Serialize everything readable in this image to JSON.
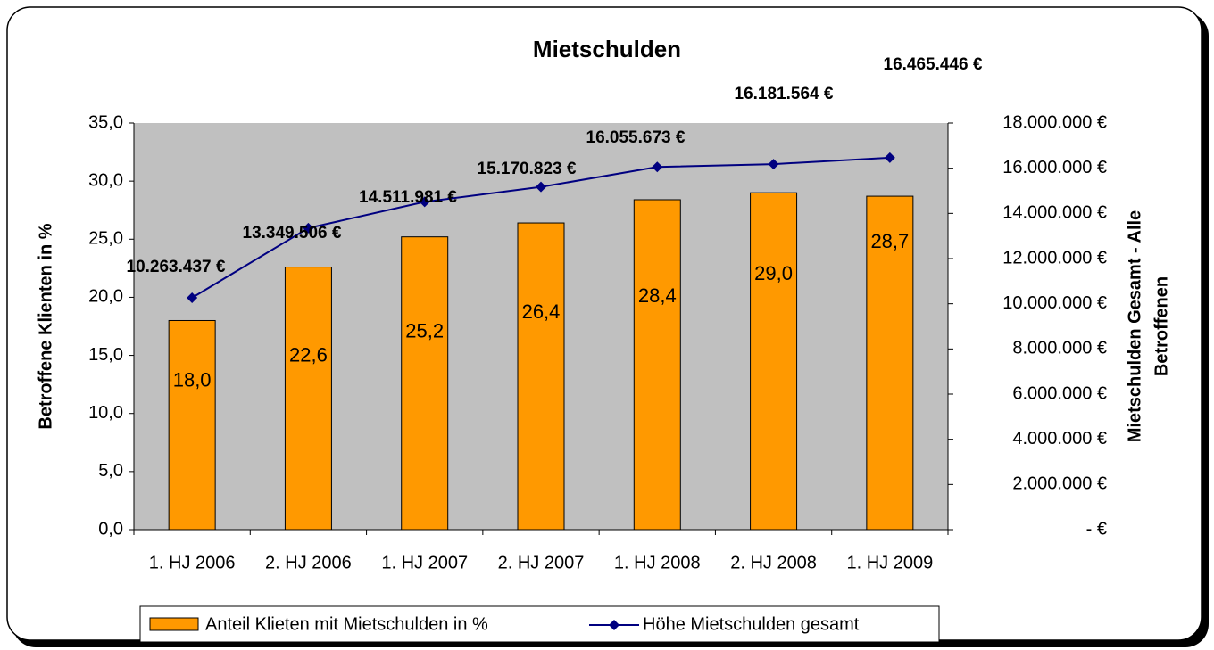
{
  "chart_data": {
    "type": "bar",
    "title": "Mietschulden",
    "categories": [
      "1. HJ 2006",
      "2. HJ 2006",
      "1. HJ 2007",
      "2. HJ 2007",
      "1. HJ 2008",
      "2. HJ 2008",
      "1. HJ 2009"
    ],
    "ylabel": "Betroffene Klienten in %",
    "y2label": [
      "Mietschulden Gesamt - Alle",
      "Betroffenen"
    ],
    "ylim": [
      0,
      35
    ],
    "yticks": [
      {
        "value": 0,
        "label": "0,0"
      },
      {
        "value": 5,
        "label": "5,0"
      },
      {
        "value": 10,
        "label": "10,0"
      },
      {
        "value": 15,
        "label": "15,0"
      },
      {
        "value": 20,
        "label": "20,0"
      },
      {
        "value": 25,
        "label": "25,0"
      },
      {
        "value": 30,
        "label": "30,0"
      },
      {
        "value": 35,
        "label": "35,0"
      }
    ],
    "y2lim": [
      0,
      18000000
    ],
    "y2ticks": [
      {
        "value": 0,
        "label": "- €"
      },
      {
        "value": 2000000,
        "label": "2.000.000 €"
      },
      {
        "value": 4000000,
        "label": "4.000.000 €"
      },
      {
        "value": 6000000,
        "label": "6.000.000 €"
      },
      {
        "value": 8000000,
        "label": "8.000.000 €"
      },
      {
        "value": 10000000,
        "label": "10.000.000 €"
      },
      {
        "value": 12000000,
        "label": "12.000.000 €"
      },
      {
        "value": 14000000,
        "label": "14.000.000 €"
      },
      {
        "value": 16000000,
        "label": "16.000.000 €"
      },
      {
        "value": 18000000,
        "label": "18.000.000 €"
      }
    ],
    "series": [
      {
        "name": "Anteil Klieten mit Mietschulden in %",
        "type": "bar",
        "color": "#ff9900",
        "values": [
          18.0,
          22.6,
          25.2,
          26.4,
          28.4,
          29.0,
          28.7
        ],
        "value_labels": [
          "18,0",
          "22,6",
          "25,2",
          "26,4",
          "28,4",
          "29,0",
          "28,7"
        ]
      },
      {
        "name": "Höhe Mietschulden gesamt",
        "type": "line",
        "axis": "y2",
        "color": "#000080",
        "values": [
          10263437,
          13349506,
          14511981,
          15170823,
          16055673,
          16181564,
          16465446
        ],
        "value_labels": [
          "10.263.437 €",
          "13.349.506 €",
          "14.511.981 €",
          "15.170.823 €",
          "16.055.673 €",
          "16.181.564 €",
          "16.465.446 €"
        ]
      }
    ]
  }
}
